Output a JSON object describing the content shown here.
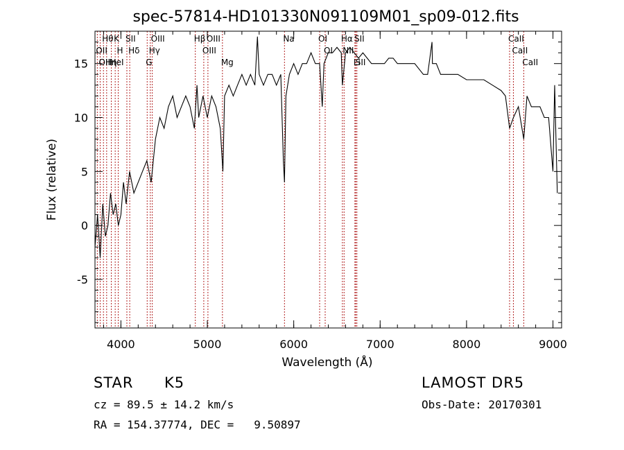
{
  "chart_data": {
    "type": "line",
    "title": "spec-57814-HD101330N091109M01_sp09-012.fits",
    "xlabel": "Wavelength (Å)",
    "ylabel": "Flux (relative)",
    "xlim": [
      3700,
      9100
    ],
    "ylim": [
      -9.5,
      18
    ],
    "xticks": [
      4000,
      5000,
      6000,
      7000,
      8000,
      9000
    ],
    "yticks": [
      -5,
      0,
      5,
      10,
      15
    ],
    "grid": false,
    "line_color": "#000000",
    "marker_color": "#b22222",
    "spectrum": {
      "x": [
        3700,
        3730,
        3760,
        3790,
        3820,
        3850,
        3880,
        3910,
        3940,
        3970,
        4000,
        4030,
        4060,
        4100,
        4150,
        4200,
        4250,
        4300,
        4350,
        4400,
        4450,
        4500,
        4550,
        4600,
        4650,
        4700,
        4750,
        4800,
        4850,
        4880,
        4900,
        4950,
        5000,
        5050,
        5100,
        5150,
        5180,
        5200,
        5250,
        5300,
        5350,
        5400,
        5450,
        5500,
        5550,
        5580,
        5600,
        5650,
        5700,
        5750,
        5800,
        5850,
        5880,
        5893,
        5910,
        5950,
        6000,
        6050,
        6100,
        6150,
        6200,
        6250,
        6300,
        6330,
        6350,
        6400,
        6450,
        6500,
        6550,
        6563,
        6600,
        6650,
        6700,
        6750,
        6800,
        6850,
        6900,
        6950,
        7000,
        7050,
        7100,
        7150,
        7200,
        7300,
        7400,
        7500,
        7550,
        7600,
        7605,
        7650,
        7700,
        7800,
        7900,
        8000,
        8100,
        8200,
        8300,
        8400,
        8450,
        8498,
        8542,
        8600,
        8662,
        8700,
        8750,
        8800,
        8850,
        8900,
        8950,
        8980,
        9000,
        9020,
        9050
      ],
      "y": [
        -2,
        1,
        -3,
        2,
        -1,
        0,
        3,
        1,
        2,
        0,
        1,
        4,
        2,
        5,
        3,
        4,
        5,
        6,
        4,
        8,
        10,
        9,
        11,
        12,
        10,
        11,
        12,
        11,
        9,
        13,
        10,
        12,
        10,
        12,
        11,
        9,
        5,
        12,
        13,
        12,
        13,
        14,
        13,
        14,
        13,
        17.5,
        14,
        13,
        14,
        14,
        13,
        14,
        6,
        4,
        12,
        14,
        15,
        14,
        15,
        15,
        16,
        15,
        15,
        11,
        15,
        16,
        16,
        16.5,
        16,
        13,
        16,
        16.5,
        16,
        15.5,
        16,
        15.5,
        15,
        15,
        15,
        15,
        15.5,
        15.5,
        15,
        15,
        15,
        14,
        14,
        17,
        15,
        15,
        14,
        14,
        14,
        13.5,
        13.5,
        13.5,
        13,
        12.5,
        12,
        9,
        10,
        11,
        8,
        12,
        11,
        11,
        11,
        10,
        10,
        7,
        5,
        13,
        3
      ]
    },
    "lines": [
      {
        "name": "Hθ",
        "wl": 3798
      },
      {
        "name": "OII",
        "wl": 3727
      },
      {
        "name": "OIII",
        "wl": 3760
      },
      {
        "name": "Hη",
        "wl": 3835
      },
      {
        "name": "HeI",
        "wl": 3889
      },
      {
        "name": "K",
        "wl": 3934
      },
      {
        "name": "H",
        "wl": 3969
      },
      {
        "name": "SII",
        "wl": 4069
      },
      {
        "name": "Hδ",
        "wl": 4102
      },
      {
        "name": "OIII",
        "wl": 4363
      },
      {
        "name": "Hγ",
        "wl": 4340
      },
      {
        "name": "G",
        "wl": 4304
      },
      {
        "name": "Hβ",
        "wl": 4861
      },
      {
        "name": "OIII",
        "wl": 4959
      },
      {
        "name": "OIII",
        "wl": 5007
      },
      {
        "name": "Mg",
        "wl": 5175
      },
      {
        "name": "Na",
        "wl": 5893
      },
      {
        "name": "OI",
        "wl": 6300
      },
      {
        "name": "OI",
        "wl": 6364
      },
      {
        "name": "Hα",
        "wl": 6563
      },
      {
        "name": "NII",
        "wl": 6583
      },
      {
        "name": "SII",
        "wl": 6717
      },
      {
        "name": "Li",
        "wl": 6708
      },
      {
        "name": "SII",
        "wl": 6731
      },
      {
        "name": "CaII",
        "wl": 8498
      },
      {
        "name": "CaII",
        "wl": 8542
      },
      {
        "name": "CaII",
        "wl": 8662
      }
    ]
  },
  "info": {
    "class_label": "STAR",
    "subclass": "K5",
    "survey": "LAMOST DR5",
    "cz": "cz = 89.5 ± 14.2 km/s",
    "obs_date": "Obs-Date: 20170301",
    "coords": "RA = 154.37774, DEC =   9.50897"
  }
}
